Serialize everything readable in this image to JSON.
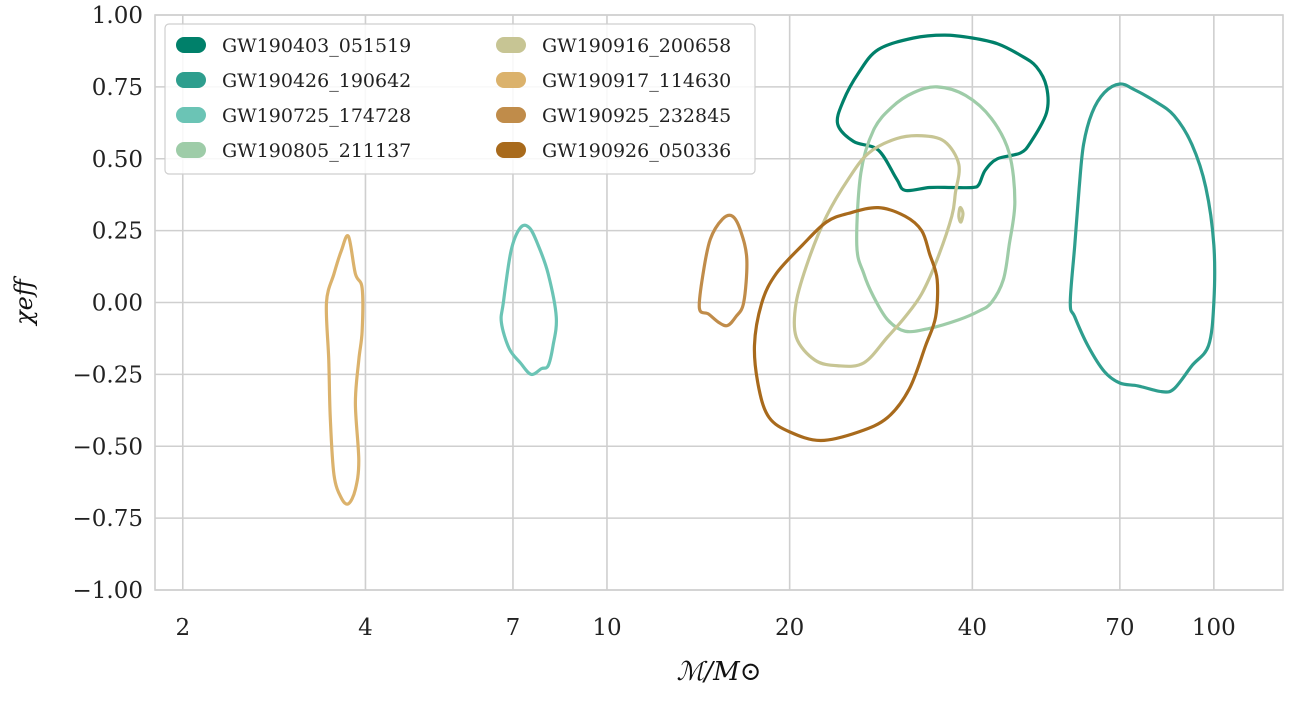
{
  "chart_data": {
    "type": "contour",
    "xlabel": "ℳ/M⊙",
    "ylabel": "χeff",
    "xscale": "log",
    "xlim": [
      1.8,
      130
    ],
    "ylim": [
      -1.0,
      1.0
    ],
    "xticks": [
      2,
      4,
      7,
      10,
      20,
      40,
      70,
      100
    ],
    "xtick_labels": [
      "2",
      "4",
      "7",
      "10",
      "20",
      "40",
      "70",
      "100"
    ],
    "yticks": [
      -1.0,
      -0.75,
      -0.5,
      -0.25,
      0.0,
      0.25,
      0.5,
      0.75,
      1.0
    ],
    "ytick_labels": [
      "−1.00",
      "−0.75",
      "−0.50",
      "−0.25",
      "0.00",
      "0.25",
      "0.50",
      "0.75",
      "1.00"
    ],
    "grid": true,
    "legend_position": "top-left",
    "series": [
      {
        "name": "GW190403_051519",
        "color": "#00806a",
        "contours": [
          [
            [
              24,
              0.62
            ],
            [
              24.5,
              0.7
            ],
            [
              26,
              0.8
            ],
            [
              28,
              0.88
            ],
            [
              32,
              0.92
            ],
            [
              36,
              0.93
            ],
            [
              40,
              0.92
            ],
            [
              44,
              0.9
            ],
            [
              48,
              0.86
            ],
            [
              51,
              0.82
            ],
            [
              53,
              0.75
            ],
            [
              53,
              0.66
            ],
            [
              50,
              0.56
            ],
            [
              48,
              0.52
            ],
            [
              44,
              0.5
            ],
            [
              42,
              0.46
            ],
            [
              41,
              0.41
            ],
            [
              40,
              0.4
            ],
            [
              37,
              0.4
            ],
            [
              34,
              0.4
            ],
            [
              31,
              0.39
            ],
            [
              30,
              0.43
            ],
            [
              28,
              0.53
            ],
            [
              25.5,
              0.56
            ]
          ]
        ]
      },
      {
        "name": "GW190426_190642",
        "color": "#2e9e8e",
        "contours": [
          [
            [
              58,
              0.0
            ],
            [
              59,
              0.2
            ],
            [
              60,
              0.4
            ],
            [
              61,
              0.55
            ],
            [
              63,
              0.66
            ],
            [
              66,
              0.73
            ],
            [
              70,
              0.76
            ],
            [
              74,
              0.74
            ],
            [
              80,
              0.7
            ],
            [
              86,
              0.65
            ],
            [
              92,
              0.55
            ],
            [
              97,
              0.4
            ],
            [
              100,
              0.2
            ],
            [
              100,
              0.0
            ],
            [
              98,
              -0.15
            ],
            [
              92,
              -0.22
            ],
            [
              86,
              -0.3
            ],
            [
              82,
              -0.31
            ],
            [
              75,
              -0.29
            ],
            [
              70,
              -0.28
            ],
            [
              66,
              -0.24
            ],
            [
              62,
              -0.15
            ],
            [
              59,
              -0.05
            ]
          ]
        ]
      },
      {
        "name": "GW190725_174728",
        "color": "#6bc4b5",
        "contours": [
          [
            [
              6.75,
              0.0
            ],
            [
              6.95,
              0.18
            ],
            [
              7.2,
              0.26
            ],
            [
              7.45,
              0.26
            ],
            [
              7.7,
              0.2
            ],
            [
              8.0,
              0.1
            ],
            [
              8.25,
              -0.05
            ],
            [
              8.15,
              -0.15
            ],
            [
              8.0,
              -0.22
            ],
            [
              7.8,
              -0.23
            ],
            [
              7.5,
              -0.25
            ],
            [
              7.2,
              -0.21
            ],
            [
              6.9,
              -0.16
            ],
            [
              6.7,
              -0.07
            ]
          ]
        ]
      },
      {
        "name": "GW190805_211137",
        "color": "#9ecca8",
        "contours": [
          [
            [
              25.8,
              0.2
            ],
            [
              26.2,
              0.45
            ],
            [
              27.5,
              0.6
            ],
            [
              29.5,
              0.68
            ],
            [
              32,
              0.73
            ],
            [
              35,
              0.75
            ],
            [
              39,
              0.72
            ],
            [
              43,
              0.64
            ],
            [
              46,
              0.52
            ],
            [
              47,
              0.35
            ],
            [
              46,
              0.2
            ],
            [
              45,
              0.08
            ],
            [
              43,
              0.0
            ],
            [
              41,
              -0.03
            ],
            [
              38,
              -0.06
            ],
            [
              34,
              -0.09
            ],
            [
              31,
              -0.1
            ],
            [
              29,
              -0.06
            ],
            [
              27.5,
              0.02
            ],
            [
              26.5,
              0.1
            ]
          ]
        ]
      },
      {
        "name": "GW190916_200658",
        "color": "#c7c594",
        "contours": [
          [
            [
              20.5,
              0.0
            ],
            [
              21.5,
              0.15
            ],
            [
              23,
              0.3
            ],
            [
              25,
              0.43
            ],
            [
              27,
              0.52
            ],
            [
              30,
              0.57
            ],
            [
              33,
              0.58
            ],
            [
              36,
              0.56
            ],
            [
              38,
              0.48
            ],
            [
              37.5,
              0.38
            ],
            [
              37,
              0.3
            ],
            [
              35,
              0.15
            ],
            [
              33,
              0.03
            ],
            [
              31,
              -0.05
            ],
            [
              29,
              -0.12
            ],
            [
              26.5,
              -0.21
            ],
            [
              24,
              -0.22
            ],
            [
              22,
              -0.2
            ],
            [
              20.5,
              -0.12
            ]
          ],
          [
            [
              38.2,
              0.33
            ],
            [
              38.6,
              0.31
            ],
            [
              38.3,
              0.28
            ],
            [
              38.0,
              0.3
            ]
          ]
        ]
      },
      {
        "name": "GW190917_114630",
        "color": "#dbb26c",
        "contours": [
          [
            [
              3.45,
              0.0
            ],
            [
              3.55,
              0.1
            ],
            [
              3.65,
              0.18
            ],
            [
              3.75,
              0.23
            ],
            [
              3.85,
              0.1
            ],
            [
              3.95,
              0.05
            ],
            [
              3.95,
              -0.1
            ],
            [
              3.9,
              -0.2
            ],
            [
              3.85,
              -0.35
            ],
            [
              3.9,
              -0.55
            ],
            [
              3.85,
              -0.65
            ],
            [
              3.75,
              -0.7
            ],
            [
              3.65,
              -0.68
            ],
            [
              3.55,
              -0.6
            ],
            [
              3.5,
              -0.4
            ],
            [
              3.48,
              -0.2
            ]
          ]
        ]
      },
      {
        "name": "GW190925_232845",
        "color": "#c08c4a",
        "contours": [
          [
            [
              14.2,
              -0.02
            ],
            [
              14.4,
              0.1
            ],
            [
              14.8,
              0.22
            ],
            [
              15.5,
              0.29
            ],
            [
              16.1,
              0.3
            ],
            [
              16.6,
              0.25
            ],
            [
              17.0,
              0.15
            ],
            [
              16.8,
              0.0
            ],
            [
              16.3,
              -0.05
            ],
            [
              15.8,
              -0.08
            ],
            [
              15.3,
              -0.07
            ],
            [
              14.7,
              -0.04
            ]
          ]
        ]
      },
      {
        "name": "GW190926_050336",
        "color": "#a86a1c",
        "contours": [
          [
            [
              17.5,
              -0.15
            ],
            [
              18,
              0.0
            ],
            [
              19,
              0.1
            ],
            [
              21,
              0.2
            ],
            [
              23,
              0.28
            ],
            [
              25,
              0.31
            ],
            [
              28,
              0.33
            ],
            [
              31,
              0.3
            ],
            [
              33,
              0.25
            ],
            [
              34,
              0.17
            ],
            [
              35,
              0.08
            ],
            [
              34.8,
              -0.05
            ],
            [
              33.5,
              -0.15
            ],
            [
              31.5,
              -0.3
            ],
            [
              29,
              -0.4
            ],
            [
              26,
              -0.45
            ],
            [
              22.5,
              -0.48
            ],
            [
              20,
              -0.45
            ],
            [
              18.5,
              -0.4
            ],
            [
              17.8,
              -0.3
            ]
          ]
        ]
      }
    ]
  }
}
